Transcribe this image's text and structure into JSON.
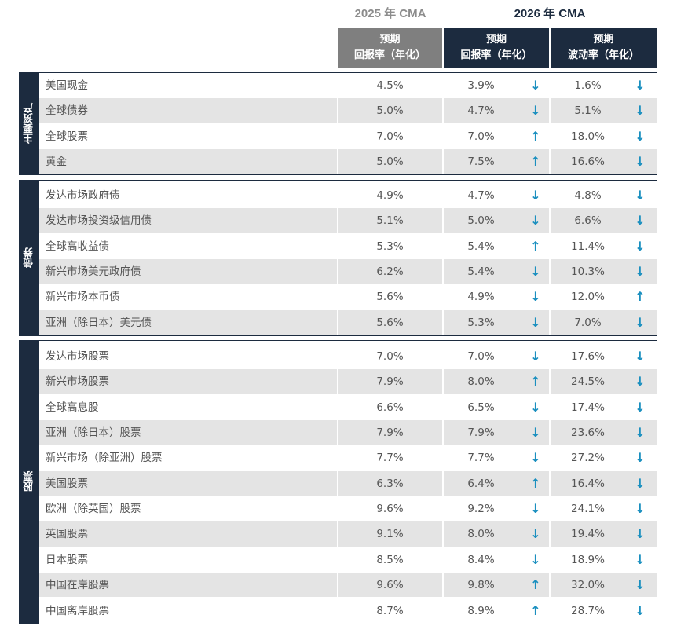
{
  "header": {
    "col_2025": "2025 年 CMA",
    "col_2026": "2026 年 CMA"
  },
  "columns": [
    {
      "line1": "预期",
      "line2": "回报率（年化）"
    },
    {
      "line1": "预期",
      "line2": "回报率（年化）"
    },
    {
      "line1": "预期",
      "line2": "波动率（年化）"
    }
  ],
  "groups": [
    {
      "label": "主要资产",
      "rows": [
        [
          "美国现金",
          "4.5%",
          "3.9%",
          "↓",
          "1.6%",
          "↓"
        ],
        [
          "全球债券",
          "5.0%",
          "4.7%",
          "↓",
          "5.1%",
          "↓"
        ],
        [
          "全球股票",
          "7.0%",
          "7.0%",
          "↑",
          "18.0%",
          "↓"
        ],
        [
          "黄金",
          "5.0%",
          "7.5%",
          "↑",
          "16.6%",
          "↓"
        ]
      ]
    },
    {
      "label": "债券",
      "rows": [
        [
          "发达市场政府债",
          "4.9%",
          "4.7%",
          "↓",
          "4.8%",
          "↓"
        ],
        [
          "发达市场投资级信用债",
          "5.1%",
          "5.0%",
          "↓",
          "6.6%",
          "↓"
        ],
        [
          "全球高收益债",
          "5.3%",
          "5.4%",
          "↑",
          "11.4%",
          "↓"
        ],
        [
          "新兴市场美元政府债",
          "6.2%",
          "5.4%",
          "↓",
          "10.3%",
          "↓"
        ],
        [
          "新兴市场本币债",
          "5.6%",
          "4.9%",
          "↓",
          "12.0%",
          "↑"
        ],
        [
          "亚洲（除日本）美元债",
          "5.6%",
          "5.3%",
          "↓",
          "7.0%",
          "↓"
        ]
      ]
    },
    {
      "label": "股票",
      "rows": [
        [
          "发达市场股票",
          "7.0%",
          "7.0%",
          "↓",
          "17.6%",
          "↓"
        ],
        [
          "新兴市场股票",
          "7.9%",
          "8.0%",
          "↑",
          "24.5%",
          "↓"
        ],
        [
          "全球高息股",
          "6.6%",
          "6.5%",
          "↓",
          "17.4%",
          "↓"
        ],
        [
          "亚洲（除日本）股票",
          "7.9%",
          "7.9%",
          "↓",
          "23.6%",
          "↓"
        ],
        [
          "新兴市场（除亚洲）股票",
          "7.7%",
          "7.7%",
          "↓",
          "27.2%",
          "↓"
        ],
        [
          "美国股票",
          "6.3%",
          "6.4%",
          "↑",
          "16.4%",
          "↓"
        ],
        [
          "欧洲（除英国）股票",
          "9.6%",
          "9.2%",
          "↓",
          "24.1%",
          "↓"
        ],
        [
          "英国股票",
          "9.1%",
          "8.0%",
          "↓",
          "19.4%",
          "↓"
        ],
        [
          "日本股票",
          "8.5%",
          "8.4%",
          "↓",
          "18.9%",
          "↓"
        ],
        [
          "中国在岸股票",
          "9.6%",
          "9.8%",
          "↑",
          "32.0%",
          "↓"
        ],
        [
          "中国离岸股票",
          "8.7%",
          "8.9%",
          "↑",
          "28.7%",
          "↓"
        ]
      ]
    }
  ]
}
